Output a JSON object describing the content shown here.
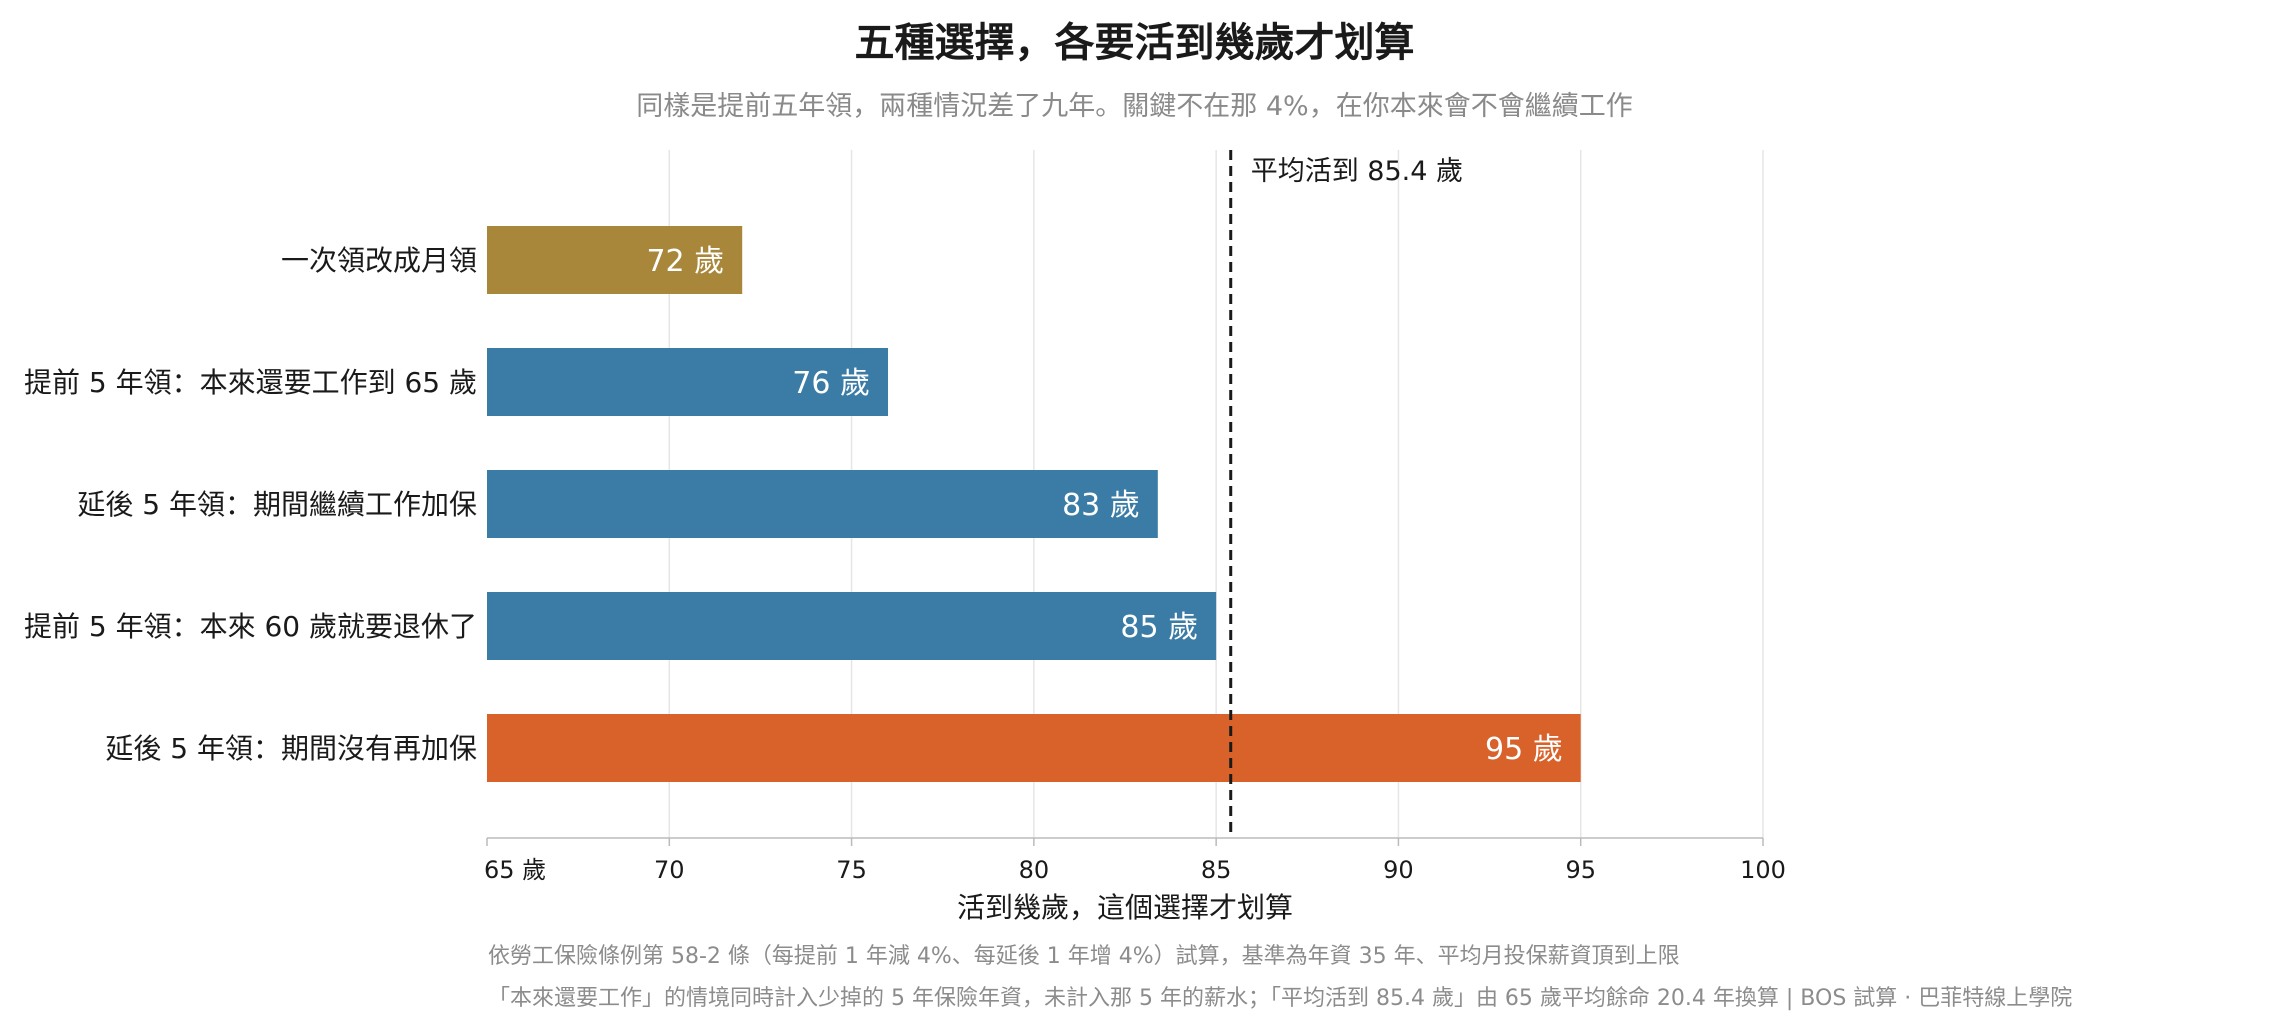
{
  "chart_data": {
    "type": "bar",
    "orientation": "horizontal",
    "title": "五種選擇，各要活到幾歲才划算",
    "subtitle": "同樣是提前五年領，兩種情況差了九年。關鍵不在那 4%，在你本來會不會繼續工作",
    "xlabel": "活到幾歲，這個選擇才划算",
    "xlim": [
      65,
      100
    ],
    "x_ticks": [
      "65 歲",
      "70",
      "75",
      "80",
      "85",
      "90",
      "95",
      "100"
    ],
    "x_tick_values": [
      65,
      70,
      75,
      80,
      85,
      90,
      95,
      100
    ],
    "grid": "vertical",
    "categories": [
      "一次領改成月領",
      "提前 5 年領：本來還要工作到 65 歲",
      "延後 5 年領：期間繼續工作加保",
      "提前 5 年領：本來 60 歲就要退休了",
      "延後 5 年領：期間沒有再加保"
    ],
    "values": [
      72,
      76,
      83.4,
      85,
      95
    ],
    "data_labels": [
      "72 歲",
      "76 歲",
      "83 歲",
      "85 歲",
      "95 歲"
    ],
    "bar_colors": [
      "#a8863a",
      "#3a7ca5",
      "#3a7ca5",
      "#3a7ca5",
      "#d9622b"
    ],
    "reference_line": {
      "value": 85.4,
      "label": "平均活到 85.4 歲",
      "style": "dashed",
      "color": "#1a1a1a"
    }
  },
  "footnotes": [
    "依勞工保險條例第 58-2 條（每提前 1 年減 4%、每延後 1 年增 4%）試算，基準為年資 35 年、平均月投保薪資頂到上限",
    "「本來還要工作」的情境同時計入少掉的 5 年保險年資，未計入那 5 年的薪水；「平均活到 85.4 歲」由 65 歲平均餘命 20.4 年換算 | BOS 試算 ·  巴菲特線上學院"
  ]
}
